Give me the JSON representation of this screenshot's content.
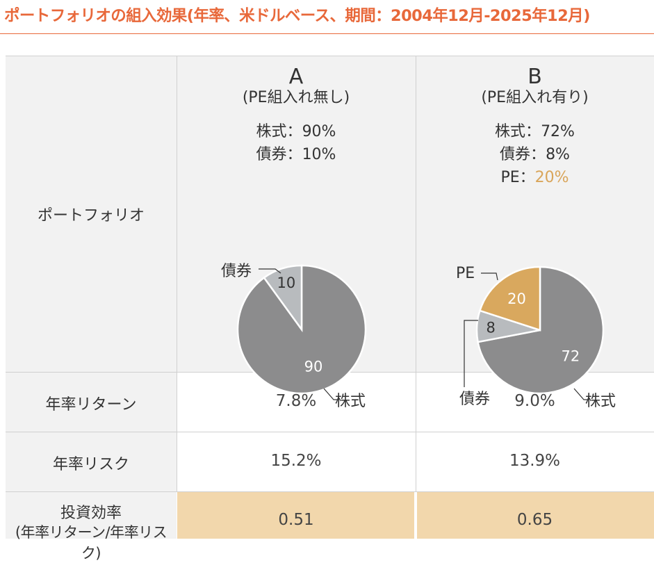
{
  "title": "ポートフォリオの組入効果(年率、米ドルベース、期間：2004年12月-2025年12月)",
  "colors": {
    "title": "#e8683a",
    "stock": "#8c8c8d",
    "bond": "#b8bbbe",
    "pe": "#d9a85e",
    "highlight": "#f2d7ac",
    "pe_text": "#d9a55a"
  },
  "rows": {
    "portfolio": "ポートフォリオ",
    "annual_return": "年率リターン",
    "annual_risk": "年率リスク",
    "efficiency": "投資効率",
    "efficiency_note": "(年率リターン/年率リスク)"
  },
  "portfolios": [
    {
      "letter": "A",
      "subtitle": "(PE組入れ無し)",
      "alloc_lines": [
        {
          "label": "株式",
          "sep": "：",
          "value": "90%"
        },
        {
          "label": "債券",
          "sep": "：",
          "value": "10%"
        }
      ],
      "return": "7.8%",
      "risk": "15.2%",
      "efficiency": "0.51"
    },
    {
      "letter": "B",
      "subtitle": "(PE組入れ有り)",
      "alloc_lines": [
        {
          "label": "株式",
          "sep": "：",
          "value": "72%"
        },
        {
          "label": "債券",
          "sep": "：",
          "value": "8%"
        },
        {
          "label": "PE",
          "sep": "：",
          "value": "20%"
        }
      ],
      "return": "9.0%",
      "risk": "13.9%",
      "efficiency": "0.65"
    }
  ],
  "chart_data": [
    {
      "type": "pie",
      "title": "A",
      "slices": [
        {
          "label": "株式",
          "value": 90,
          "color": "#8c8c8d"
        },
        {
          "label": "債券",
          "value": 10,
          "color": "#b8bbbe"
        }
      ]
    },
    {
      "type": "pie",
      "title": "B",
      "slices": [
        {
          "label": "株式",
          "value": 72,
          "color": "#8c8c8d"
        },
        {
          "label": "債券",
          "value": 8,
          "color": "#b8bbbe"
        },
        {
          "label": "PE",
          "value": 20,
          "color": "#d9a85e"
        }
      ]
    }
  ]
}
